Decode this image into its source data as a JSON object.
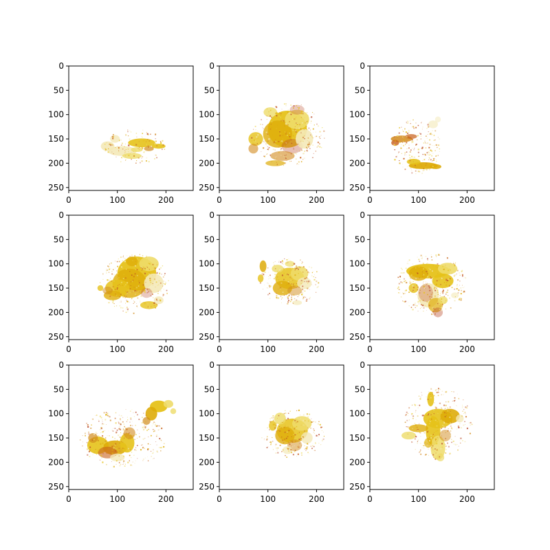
{
  "figure": {
    "layout": "3x3 grid of radar-echo image panels",
    "background": "#ffffff",
    "axis_color": "#000000",
    "colors": {
      "light": "#eedc6a",
      "main": "#e6c21a",
      "mid": "#deac0a",
      "dark": "#d28b1e",
      "hot": "#c8601a",
      "red": "#b94a2a",
      "pale": "#f4e9b8"
    }
  },
  "chart_data": [
    {
      "type": "heatmap",
      "panel": "row1-col1",
      "xlim": [
        0,
        256
      ],
      "ylim": [
        256,
        0
      ],
      "xticks": [
        "0",
        "100",
        "200"
      ],
      "yticks": [
        "0",
        "50",
        "100",
        "150",
        "200",
        "250"
      ],
      "echo_region": {
        "x_range": [
          60,
          200
        ],
        "y_range": [
          115,
          195
        ],
        "center": [
          135,
          165
        ],
        "intensity": "light"
      }
    },
    {
      "type": "heatmap",
      "panel": "row1-col2",
      "xlim": [
        0,
        256
      ],
      "ylim": [
        256,
        0
      ],
      "xticks": [
        "0",
        "100",
        "200"
      ],
      "yticks": [
        "0",
        "50",
        "100",
        "150",
        "200",
        "250"
      ],
      "echo_region": {
        "x_range": [
          45,
          215
        ],
        "y_range": [
          65,
          210
        ],
        "center": [
          140,
          140
        ],
        "intensity": "strong"
      }
    },
    {
      "type": "heatmap",
      "panel": "row1-col3",
      "xlim": [
        0,
        256
      ],
      "ylim": [
        256,
        0
      ],
      "xticks": [
        "0",
        "100",
        "200"
      ],
      "yticks": [
        "0",
        "50",
        "100",
        "150",
        "200",
        "250"
      ],
      "echo_region": {
        "x_range": [
          35,
          150
        ],
        "y_range": [
          95,
          220
        ],
        "center": [
          95,
          165
        ],
        "intensity": "moderate"
      }
    },
    {
      "type": "heatmap",
      "panel": "row2-col1",
      "xlim": [
        0,
        256
      ],
      "ylim": [
        256,
        0
      ],
      "xticks": [
        "0",
        "100",
        "200"
      ],
      "yticks": [
        "0",
        "50",
        "100",
        "150",
        "200",
        "250"
      ],
      "echo_region": {
        "x_range": [
          45,
          205
        ],
        "y_range": [
          70,
          205
        ],
        "center": [
          135,
          140
        ],
        "intensity": "strong"
      }
    },
    {
      "type": "heatmap",
      "panel": "row2-col2",
      "xlim": [
        0,
        256
      ],
      "ylim": [
        256,
        0
      ],
      "xticks": [
        "0",
        "100",
        "200"
      ],
      "yticks": [
        "0",
        "50",
        "100",
        "150",
        "200",
        "250"
      ],
      "echo_region": {
        "x_range": [
          70,
          210
        ],
        "y_range": [
          80,
          185
        ],
        "center": [
          145,
          135
        ],
        "intensity": "moderate"
      }
    },
    {
      "type": "heatmap",
      "panel": "row2-col3",
      "xlim": [
        0,
        256
      ],
      "ylim": [
        256,
        0
      ],
      "xticks": [
        "0",
        "100",
        "200"
      ],
      "yticks": [
        "0",
        "50",
        "100",
        "150",
        "200",
        "250"
      ],
      "echo_region": {
        "x_range": [
          50,
          210
        ],
        "y_range": [
          80,
          220
        ],
        "center": [
          125,
          140
        ],
        "intensity": "strong"
      }
    },
    {
      "type": "heatmap",
      "panel": "row3-col1",
      "xlim": [
        0,
        256
      ],
      "ylim": [
        256,
        0
      ],
      "xticks": [
        "0",
        "100",
        "200"
      ],
      "yticks": [
        "0",
        "50",
        "100",
        "150",
        "200",
        "250"
      ],
      "echo_region": {
        "x_range": [
          30,
          225
        ],
        "y_range": [
          65,
          200
        ],
        "center": [
          110,
          150
        ],
        "intensity": "strong"
      }
    },
    {
      "type": "heatmap",
      "panel": "row3-col2",
      "xlim": [
        0,
        256
      ],
      "ylim": [
        256,
        0
      ],
      "xticks": [
        "0",
        "100",
        "200"
      ],
      "yticks": [
        "0",
        "50",
        "100",
        "150",
        "200",
        "250"
      ],
      "echo_region": {
        "x_range": [
          60,
          205
        ],
        "y_range": [
          80,
          190
        ],
        "center": [
          150,
          140
        ],
        "intensity": "moderate"
      }
    },
    {
      "type": "heatmap",
      "panel": "row3-col3",
      "xlim": [
        0,
        256
      ],
      "ylim": [
        256,
        0
      ],
      "xticks": [
        "0",
        "100",
        "200"
      ],
      "yticks": [
        "0",
        "50",
        "100",
        "150",
        "200",
        "250"
      ],
      "echo_region": {
        "x_range": [
          50,
          205
        ],
        "y_range": [
          45,
          210
        ],
        "center": [
          140,
          120
        ],
        "intensity": "strong"
      }
    }
  ]
}
